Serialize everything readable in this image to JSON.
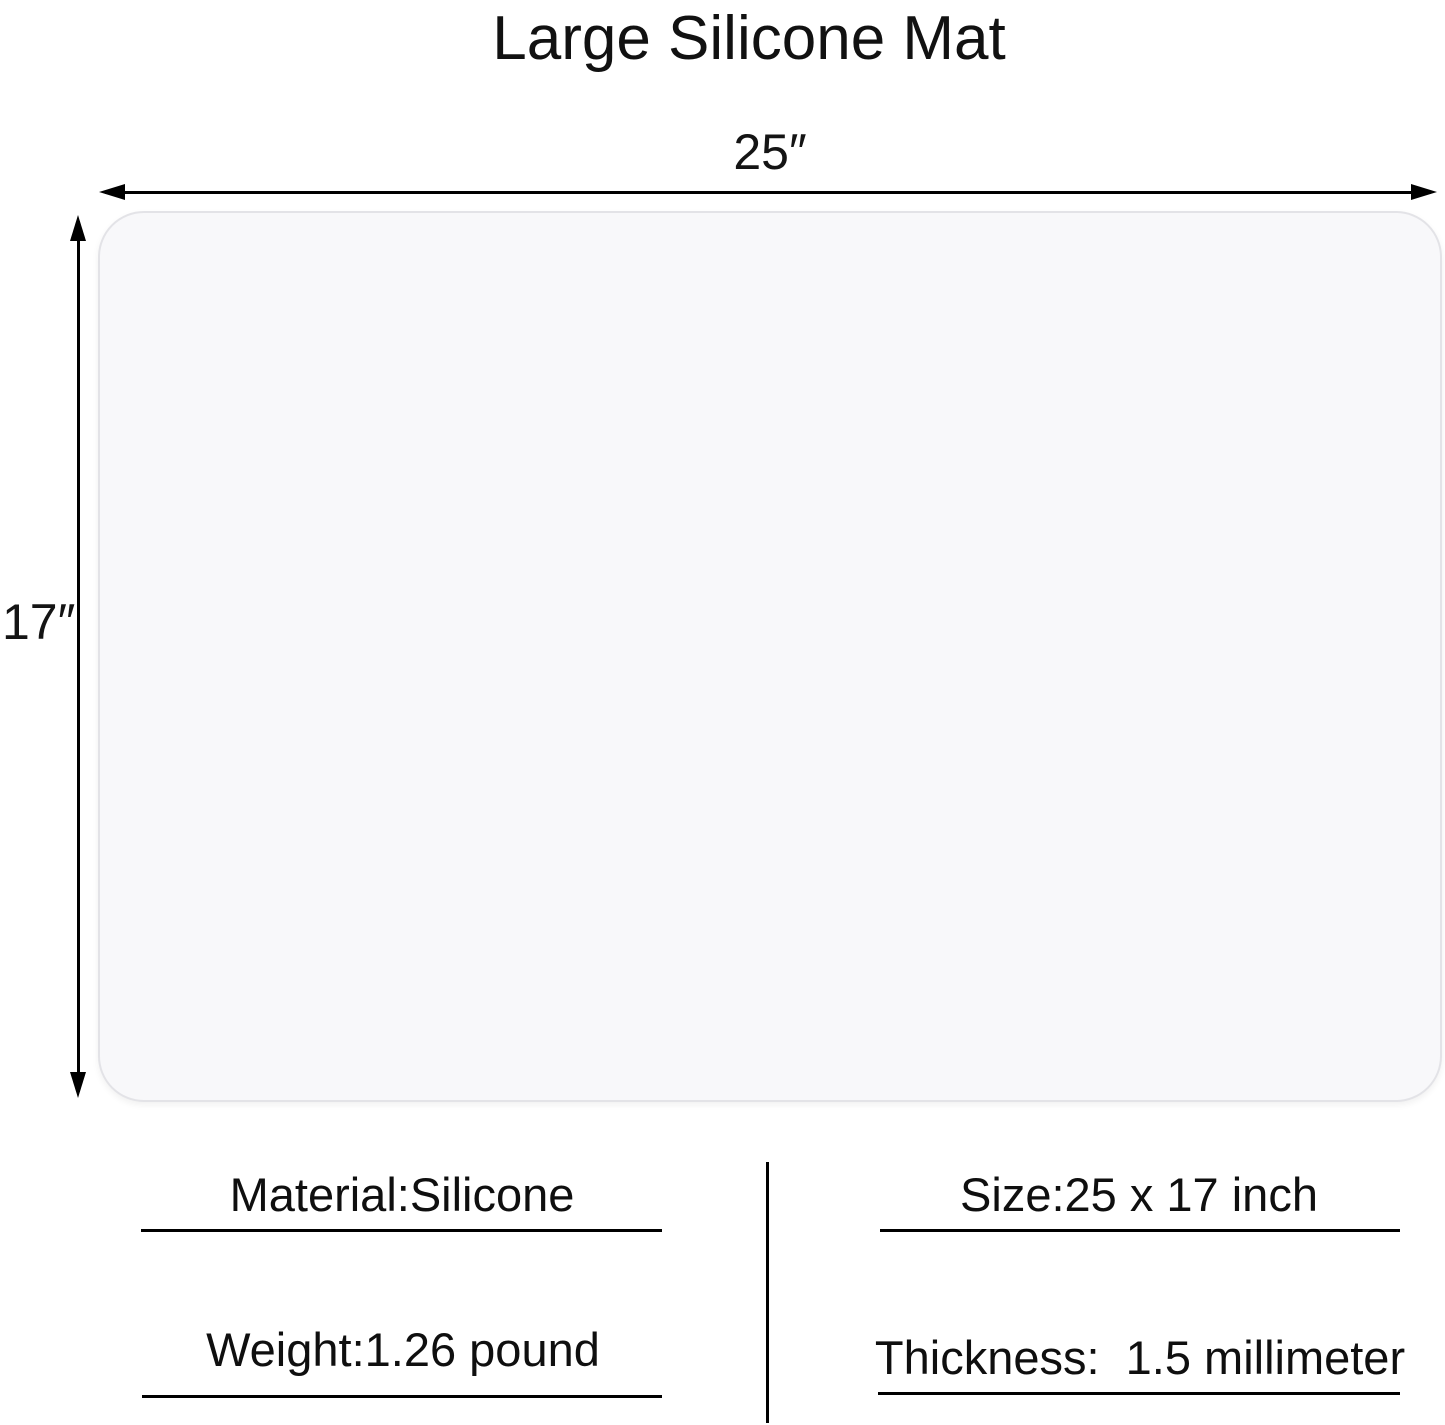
{
  "title": "Large Silicone Mat",
  "dimensions": {
    "width_label": "25″",
    "height_label": "17″"
  },
  "specs": {
    "material": "Material:Silicone",
    "size": "Size:25 x 17 inch",
    "weight": "Weight:1.26 pound",
    "thickness": "Thickness:  1.5 millimeter"
  },
  "colors": {
    "page_background": "#ffffff",
    "text": "#111111",
    "dimension_lines": "#000000",
    "mat_fill": "#f8f8fa",
    "mat_border": "#e3e3e7"
  }
}
